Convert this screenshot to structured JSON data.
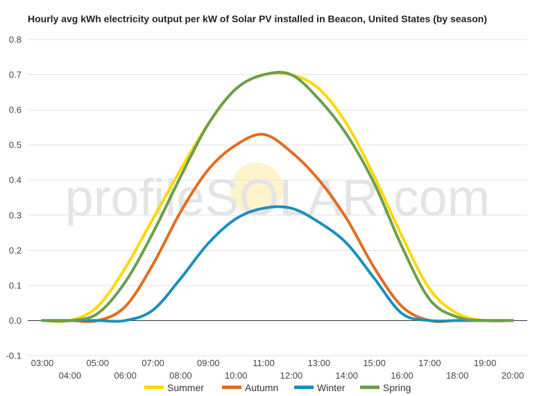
{
  "chart_data": {
    "type": "line",
    "title": "Hourly avg kWh electricity output per kW of Solar PV installed in Beacon, United States (by season)",
    "xlabel": "",
    "ylabel": "",
    "ylim": [
      -0.1,
      0.8
    ],
    "yticks": [
      "-0.1",
      "0.0",
      "0.1",
      "0.2",
      "0.3",
      "0.4",
      "0.5",
      "0.6",
      "0.7",
      "0.8"
    ],
    "x": [
      "03:00",
      "04:00",
      "05:00",
      "06:00",
      "07:00",
      "08:00",
      "09:00",
      "10:00",
      "11:00",
      "12:00",
      "13:00",
      "14:00",
      "15:00",
      "16:00",
      "17:00",
      "18:00",
      "19:00",
      "20:00"
    ],
    "grid": true,
    "legend_position": "bottom",
    "watermark": "profileSOLAR.com",
    "series": [
      {
        "name": "Summer",
        "color": "#FFD700",
        "values": [
          0,
          0,
          0.04,
          0.15,
          0.29,
          0.43,
          0.56,
          0.66,
          0.7,
          0.7,
          0.66,
          0.56,
          0.41,
          0.24,
          0.09,
          0.02,
          0,
          0
        ]
      },
      {
        "name": "Autumn",
        "color": "#E36C1E",
        "values": [
          0,
          0,
          0,
          0.04,
          0.16,
          0.31,
          0.43,
          0.5,
          0.53,
          0.48,
          0.4,
          0.29,
          0.15,
          0.04,
          0,
          0,
          0,
          0
        ]
      },
      {
        "name": "Winter",
        "color": "#1A8FBF",
        "values": [
          0,
          0,
          0,
          0,
          0.03,
          0.12,
          0.22,
          0.29,
          0.32,
          0.32,
          0.28,
          0.22,
          0.12,
          0.02,
          0,
          0,
          0,
          0
        ]
      },
      {
        "name": "Spring",
        "color": "#6B9E4F",
        "values": [
          0,
          0,
          0.02,
          0.11,
          0.25,
          0.41,
          0.56,
          0.66,
          0.7,
          0.7,
          0.63,
          0.53,
          0.39,
          0.21,
          0.06,
          0.01,
          0,
          0
        ]
      }
    ]
  }
}
